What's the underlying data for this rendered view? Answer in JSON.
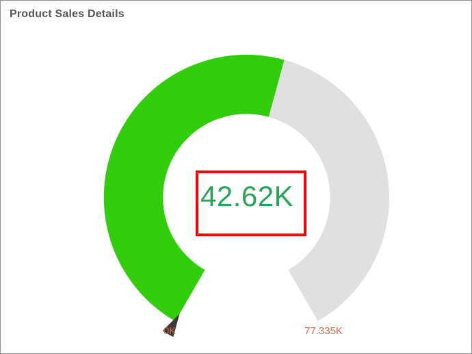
{
  "frame": {
    "border_color": "#8e8e8e",
    "background_color": "#ffffff",
    "title_color": "#565656"
  },
  "chart_data": {
    "type": "gauge",
    "title": "Product Sales Details",
    "axis": {
      "min": 0,
      "max": 77.335,
      "unit": "K",
      "start_angle": 210,
      "end_angle": 150,
      "labels": [
        "0K",
        "77.335K"
      ],
      "label_color": "#d2694b"
    },
    "pointer": {
      "type": "range",
      "value": 42.62,
      "color": "#32cd0a"
    },
    "track_color": "#e0e0e0",
    "marker": {
      "type": "triangle",
      "value": 0,
      "color": "#3a3a3a"
    },
    "annotation": {
      "text": "42.62K",
      "text_color": "#28a35c",
      "border_color": "#fe0000"
    }
  }
}
